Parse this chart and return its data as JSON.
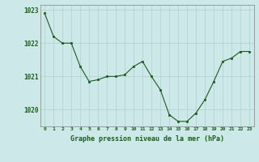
{
  "x": [
    0,
    1,
    2,
    3,
    4,
    5,
    6,
    7,
    8,
    9,
    10,
    11,
    12,
    13,
    14,
    15,
    16,
    17,
    18,
    19,
    20,
    21,
    22,
    23
  ],
  "y": [
    1022.9,
    1022.2,
    1022.0,
    1022.0,
    1021.3,
    1020.85,
    1020.9,
    1021.0,
    1021.0,
    1021.05,
    1021.3,
    1021.45,
    1021.0,
    1020.6,
    1019.85,
    1019.65,
    1019.65,
    1019.9,
    1020.3,
    1020.85,
    1021.45,
    1021.55,
    1021.75,
    1021.75
  ],
  "line_color": "#1a5c1a",
  "marker_color": "#1a5c1a",
  "bg_color": "#cce8e8",
  "grid_color": "#aed0d0",
  "axis_color": "#808080",
  "title": "Graphe pression niveau de la mer (hPa)",
  "title_color": "#1a5c1a",
  "ylim": [
    1019.5,
    1023.15
  ],
  "yticks": [
    1020,
    1021,
    1022,
    1023
  ],
  "xlim": [
    -0.5,
    23.5
  ],
  "xticks": [
    0,
    1,
    2,
    3,
    4,
    5,
    6,
    7,
    8,
    9,
    10,
    11,
    12,
    13,
    14,
    15,
    16,
    17,
    18,
    19,
    20,
    21,
    22,
    23
  ]
}
